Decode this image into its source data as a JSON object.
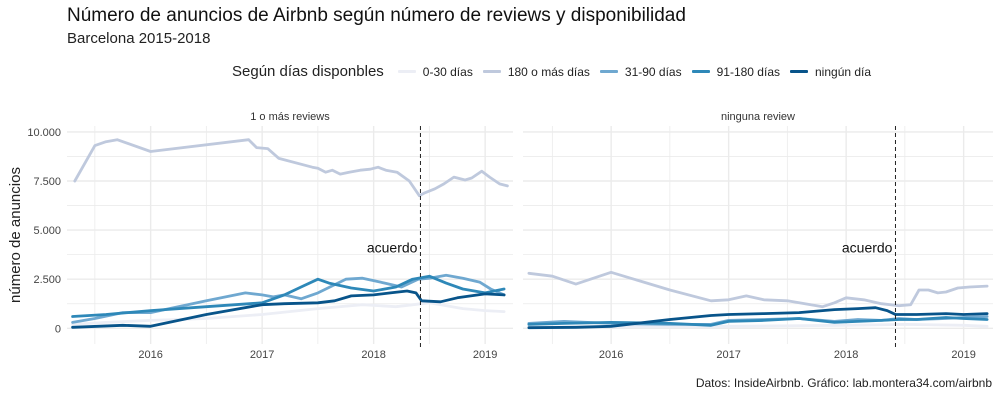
{
  "title": "Número de anuncios de Airbnb según número de reviews y disponibilidad",
  "subtitle": "Barcelona 2015-2018",
  "caption": "Datos: InsideAirbnb. Gráfico: lab.montera34.com/airbnb",
  "chart_data": {
    "type": "line",
    "ylabel": "número de anuncios",
    "xlabel": "",
    "xlim": [
      2015.25,
      2019.25
    ],
    "ylim": [
      -800,
      10300
    ],
    "x_ticks": [
      2016,
      2017,
      2018,
      2019
    ],
    "x_tick_labels": [
      "2016",
      "2017",
      "2018",
      "2019"
    ],
    "y_ticks": [
      0,
      2500,
      5000,
      7500,
      10000
    ],
    "y_tick_labels": [
      "0",
      "2.500",
      "5.000",
      "7.500",
      "10.000"
    ],
    "grid": true,
    "legend_title": "Según días disponbles",
    "legend_position": "top",
    "reference_line": {
      "x": 2018.42,
      "label": "acuerdo",
      "style": "dashed"
    },
    "series_styles": [
      {
        "name": "0-30 días",
        "color": "#eceef5"
      },
      {
        "name": "180 o más días",
        "color": "#bfc9dd"
      },
      {
        "name": "31-90 días",
        "color": "#6fa8d0"
      },
      {
        "name": "91-180 días",
        "color": "#2e88b8"
      },
      {
        "name": "ningún día",
        "color": "#08548a"
      }
    ],
    "panels": [
      {
        "title": "1 o más reviews",
        "series": [
          {
            "name": "0-30 días",
            "x": [
              2015.3,
              2015.6,
              2016.0,
              2016.5,
              2017.0,
              2017.5,
              2017.9,
              2018.2,
              2018.5,
              2018.8,
              2019.0,
              2019.17
            ],
            "y": [
              200,
              300,
              400,
              500,
              700,
              1000,
              1200,
              1100,
              1300,
              1000,
              900,
              850
            ]
          },
          {
            "name": "180 o más días",
            "x": [
              2015.32,
              2015.5,
              2015.6,
              2015.7,
              2016.0,
              2016.88,
              2016.95,
              2017.05,
              2017.15,
              2017.45,
              2017.5,
              2017.57,
              2017.63,
              2017.7,
              2017.78,
              2017.88,
              2017.97,
              2018.04,
              2018.11,
              2018.21,
              2018.32,
              2018.41,
              2018.46,
              2018.55,
              2018.63,
              2018.72,
              2018.82,
              2018.88,
              2018.97,
              2019.04,
              2019.13,
              2019.2
            ],
            "y": [
              7500,
              9300,
              9500,
              9600,
              9000,
              9600,
              9200,
              9150,
              8650,
              8200,
              8150,
              7950,
              8050,
              7850,
              7950,
              8050,
              8100,
              8200,
              8050,
              7950,
              7500,
              6750,
              6900,
              7100,
              7350,
              7700,
              7550,
              7650,
              8000,
              7700,
              7350,
              7250
            ]
          },
          {
            "name": "31-90 días",
            "x": [
              2015.3,
              2015.5,
              2015.75,
              2016.0,
              2016.5,
              2016.85,
              2017.0,
              2017.1,
              2017.2,
              2017.35,
              2017.5,
              2017.75,
              2017.9,
              2018.1,
              2018.25,
              2018.4,
              2018.5,
              2018.65,
              2018.8,
              2018.95,
              2019.05,
              2019.17
            ],
            "y": [
              300,
              500,
              800,
              800,
              1400,
              1800,
              1700,
              1600,
              1700,
              1500,
              1800,
              2500,
              2550,
              2300,
              2100,
              2500,
              2550,
              2700,
              2550,
              2350,
              2000,
              1700
            ]
          },
          {
            "name": "91-180 días",
            "x": [
              2015.3,
              2015.6,
              2016.0,
              2016.5,
              2017.0,
              2017.2,
              2017.35,
              2017.5,
              2017.6,
              2017.8,
              2018.0,
              2018.2,
              2018.35,
              2018.5,
              2018.65,
              2018.8,
              2019.0,
              2019.17
            ],
            "y": [
              600,
              700,
              900,
              1100,
              1300,
              1700,
              2100,
              2500,
              2300,
              2050,
              1900,
              2100,
              2500,
              2650,
              2300,
              2000,
              1800,
              2000
            ]
          },
          {
            "name": "ningún día",
            "x": [
              2015.3,
              2015.75,
              2016.0,
              2016.5,
              2017.0,
              2017.2,
              2017.5,
              2017.65,
              2017.8,
              2018.0,
              2018.15,
              2018.3,
              2018.38,
              2018.43,
              2018.6,
              2018.75,
              2019.0,
              2019.17
            ],
            "y": [
              50,
              150,
              100,
              700,
              1200,
              1250,
              1300,
              1400,
              1650,
              1700,
              1800,
              1900,
              1800,
              1400,
              1350,
              1550,
              1750,
              1700
            ]
          }
        ]
      },
      {
        "title": "ninguna review",
        "series": [
          {
            "name": "0-30 días",
            "x": [
              2015.3,
              2016.0,
              2017.0,
              2018.0,
              2018.5,
              2019.0,
              2019.2
            ],
            "y": [
              50,
              80,
              100,
              150,
              200,
              150,
              100
            ]
          },
          {
            "name": "180 o más días",
            "x": [
              2015.3,
              2015.5,
              2015.7,
              2016.0,
              2016.5,
              2016.85,
              2017.0,
              2017.15,
              2017.3,
              2017.5,
              2017.8,
              2017.9,
              2018.0,
              2018.15,
              2018.3,
              2018.45,
              2018.55,
              2018.62,
              2018.7,
              2018.78,
              2018.85,
              2018.95,
              2019.05,
              2019.2
            ],
            "y": [
              2800,
              2650,
              2250,
              2850,
              1950,
              1400,
              1450,
              1650,
              1450,
              1400,
              1100,
              1300,
              1550,
              1450,
              1250,
              1150,
              1200,
              1950,
              1950,
              1800,
              1850,
              2050,
              2100,
              2150
            ]
          },
          {
            "name": "31-90 días",
            "x": [
              2015.3,
              2015.6,
              2016.0,
              2016.5,
              2016.85,
              2017.0,
              2017.3,
              2017.6,
              2017.9,
              2018.1,
              2018.3,
              2018.45,
              2018.6,
              2018.85,
              2019.0,
              2019.2
            ],
            "y": [
              250,
              350,
              250,
              200,
              200,
              400,
              450,
              500,
              350,
              450,
              400,
              500,
              450,
              500,
              550,
              600
            ]
          },
          {
            "name": "91-180 días",
            "x": [
              2015.3,
              2015.6,
              2016.0,
              2016.5,
              2016.85,
              2017.0,
              2017.3,
              2017.6,
              2017.9,
              2018.1,
              2018.3,
              2018.45,
              2018.6,
              2018.85,
              2019.0,
              2019.2
            ],
            "y": [
              200,
              250,
              300,
              250,
              150,
              350,
              400,
              500,
              300,
              350,
              400,
              450,
              450,
              550,
              500,
              450
            ]
          },
          {
            "name": "ningún día",
            "x": [
              2015.3,
              2015.7,
              2016.0,
              2016.5,
              2016.85,
              2017.0,
              2017.3,
              2017.6,
              2017.9,
              2018.1,
              2018.25,
              2018.35,
              2018.42,
              2018.6,
              2018.85,
              2019.0,
              2019.2
            ],
            "y": [
              30,
              50,
              100,
              450,
              650,
              700,
              750,
              800,
              950,
              1000,
              1050,
              900,
              700,
              700,
              750,
              700,
              750
            ]
          }
        ]
      }
    ]
  }
}
